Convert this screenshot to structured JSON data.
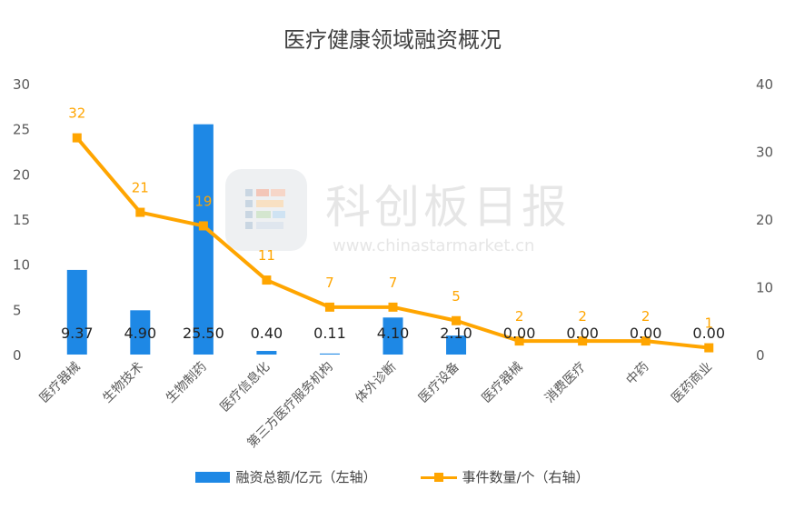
{
  "title": "医疗健康领域融资概况",
  "watermark": {
    "name": "科创板日报",
    "url": "www.chinastarmarket.cn"
  },
  "colors": {
    "bar": "#1E88E5",
    "line": "#FFA500",
    "axis_text": "#595959",
    "title": "#404040"
  },
  "legend": {
    "bar_label": "融资总额/亿元（左轴）",
    "line_label": "事件数量/个（右轴）"
  },
  "chart_data": {
    "type": "bar",
    "title": "医疗健康领域融资概况",
    "categories": [
      "医疗器械",
      "生物技术",
      "生物制药",
      "医疗信息化",
      "第三方医疗服务机构",
      "体外诊断",
      "医疗设备",
      "医疗器械",
      "消费医疗",
      "中药",
      "医药商业"
    ],
    "left_axis": {
      "min": 0,
      "max": 30,
      "ticks": [
        0,
        5,
        10,
        15,
        20,
        25,
        30
      ]
    },
    "right_axis": {
      "min": 0,
      "max": 40,
      "ticks": [
        0,
        10,
        20,
        30,
        40
      ]
    },
    "series": [
      {
        "name": "融资总额/亿元（左轴）",
        "type": "bar",
        "axis": "left",
        "values": [
          9.37,
          4.9,
          25.5,
          0.4,
          0.11,
          4.1,
          2.1,
          0.0,
          0.0,
          0.0,
          0.0
        ],
        "labels": [
          "9.37",
          "4.90",
          "25.50",
          "0.40",
          "0.11",
          "4.10",
          "2.10",
          "0.00",
          "0.00",
          "0.00",
          "0.00"
        ]
      },
      {
        "name": "事件数量/个（右轴）",
        "type": "line",
        "axis": "right",
        "values": [
          32,
          21,
          19,
          11,
          7,
          7,
          5,
          2,
          2,
          2,
          1
        ]
      }
    ],
    "legend_position": "bottom",
    "grid": false
  }
}
